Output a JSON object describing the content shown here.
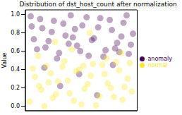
{
  "chart_data": {
    "type": "scatter",
    "title": "Distribution of dst_host_count after normalization",
    "y_label": "Value",
    "xlim": [
      -3,
      103
    ],
    "ylim": [
      -0.05,
      1.05
    ],
    "yticks": [
      {
        "value": 0,
        "label": "0.0"
      },
      {
        "value": 0.2,
        "label": "0.2"
      },
      {
        "value": 0.4,
        "label": "0.4"
      },
      {
        "value": 0.6,
        "label": "0.6"
      },
      {
        "value": 0.8,
        "label": "0.8"
      },
      {
        "value": 1,
        "label": "1.0"
      }
    ],
    "grid": false,
    "legend": "right",
    "tick_labels": "y",
    "marker": "circle",
    "series": [
      {
        "name": "anomaly",
        "color": "#440154",
        "x": [
          2,
          8,
          13,
          19,
          24,
          29,
          35,
          40,
          46,
          51,
          57,
          62,
          68,
          73,
          79,
          84,
          90,
          95,
          99,
          5,
          11,
          16,
          22,
          27,
          33,
          38,
          44,
          49,
          55,
          60,
          66,
          71,
          77,
          82,
          88,
          93,
          97,
          15,
          48,
          80,
          30,
          65,
          3,
          42,
          86
        ],
        "values": [
          0.98,
          0.62,
          0.85,
          0.71,
          0.93,
          0.58,
          0.77,
          0.99,
          0.66,
          0.88,
          0.55,
          0.74,
          0.96,
          0.61,
          0.83,
          0.69,
          0.91,
          0.57,
          0.79,
          0.73,
          0.95,
          0.64,
          0.81,
          0.52,
          0.9,
          0.68,
          0.84,
          0.6,
          0.97,
          0.72,
          0.86,
          0.54,
          0.94,
          0.63,
          0.76,
          0.99,
          0.67,
          0.42,
          0.35,
          0.45,
          0.22,
          0.12,
          0.87,
          0.75,
          0.59
        ]
      },
      {
        "name": "normal",
        "color": "#fde725",
        "x": [
          1,
          6,
          12,
          17,
          23,
          28,
          34,
          39,
          45,
          50,
          56,
          61,
          67,
          72,
          78,
          83,
          89,
          94,
          98,
          4,
          10,
          15,
          21,
          26,
          32,
          37,
          43,
          48,
          53,
          59,
          64,
          70,
          75,
          81,
          86,
          91,
          96,
          9,
          41,
          74,
          25,
          58,
          88,
          19,
          52
        ],
        "values": [
          0.05,
          0.32,
          0.18,
          0.44,
          0.09,
          0.27,
          0.49,
          0.14,
          0.38,
          0.02,
          0.24,
          0.46,
          0.11,
          0.35,
          0.2,
          0.48,
          0.07,
          0.3,
          0.16,
          0.41,
          0.22,
          0,
          0.36,
          0.13,
          0.43,
          0.28,
          0.06,
          0.4,
          0.19,
          0.33,
          0.01,
          0.45,
          0.25,
          0.1,
          0.39,
          0.21,
          0.47,
          0.55,
          0.62,
          0.52,
          0.7,
          0.8,
          0.58,
          0.26,
          0.44
        ]
      }
    ]
  }
}
